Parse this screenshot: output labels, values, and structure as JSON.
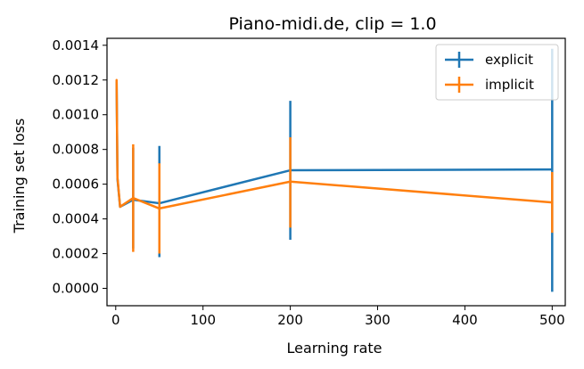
{
  "chart_data": {
    "type": "line",
    "title": "Piano-midi.de, clip = 1.0",
    "xlabel": "Learning rate",
    "ylabel": "Training set loss",
    "xlim": [
      -10,
      515
    ],
    "ylim": [
      -0.0001,
      0.00144
    ],
    "x_ticks": [
      0,
      100,
      200,
      300,
      400,
      500
    ],
    "x_tick_labels": [
      "0",
      "100",
      "200",
      "300",
      "400",
      "500"
    ],
    "y_ticks": [
      0.0,
      0.0002,
      0.0004,
      0.0006,
      0.0008,
      0.001,
      0.0012,
      0.0014
    ],
    "y_tick_labels": [
      "0.0000",
      "0.0002",
      "0.0004",
      "0.0006",
      "0.0008",
      "0.0010",
      "0.0012",
      "0.0014"
    ],
    "grid": false,
    "legend_position": "top-right",
    "error_bars": true,
    "series": [
      {
        "name": "explicit",
        "color": "#1f77b4",
        "x": [
          1,
          2,
          5,
          20,
          50,
          200,
          500
        ],
        "y": [
          0.00119,
          0.00063,
          0.00047,
          0.00051,
          0.00049,
          0.00068,
          0.000685
        ],
        "yerr_low": [
          0.00119,
          0.00063,
          0.00047,
          0.00023,
          0.00018,
          0.00028,
          -2e-05
        ],
        "yerr_high": [
          0.00119,
          0.00063,
          0.00047,
          0.00081,
          0.00082,
          0.00108,
          0.00138
        ]
      },
      {
        "name": "implicit",
        "color": "#ff7f0e",
        "x": [
          1,
          2,
          5,
          20,
          50,
          200,
          500
        ],
        "y": [
          0.0012,
          0.00064,
          0.00047,
          0.00052,
          0.00046,
          0.000615,
          0.000495
        ],
        "yerr_low": [
          0.0012,
          0.00064,
          0.00047,
          0.00021,
          0.0002,
          0.00035,
          0.00032
        ],
        "yerr_high": [
          0.0012,
          0.00064,
          0.00047,
          0.00083,
          0.00072,
          0.00087,
          0.00067
        ]
      }
    ]
  }
}
